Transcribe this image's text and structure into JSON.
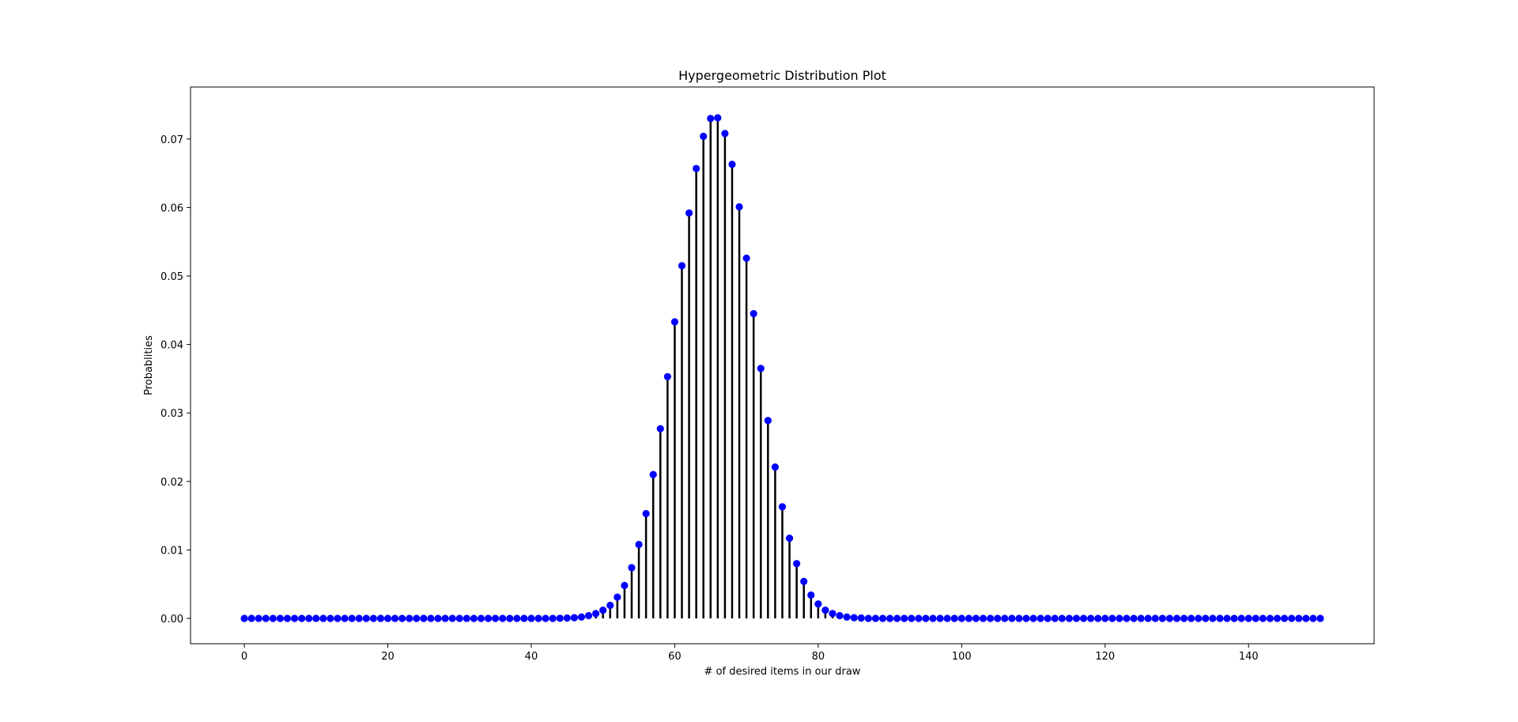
{
  "chart_data": {
    "type": "stem",
    "title": "Hypergeometric Distribution Plot",
    "xlabel": "# of desired items in our draw",
    "ylabel": "Probablities",
    "xlim": [
      -7.5,
      157.5
    ],
    "ylim": [
      -0.0037,
      0.0776
    ],
    "xticks": [
      0,
      20,
      40,
      60,
      80,
      100,
      120,
      140
    ],
    "xtick_labels": [
      "0",
      "20",
      "40",
      "60",
      "80",
      "100",
      "120",
      "140"
    ],
    "yticks": [
      0.0,
      0.01,
      0.02,
      0.03,
      0.04,
      0.05,
      0.06,
      0.07
    ],
    "ytick_labels": [
      "0.00",
      "0.01",
      "0.02",
      "0.03",
      "0.04",
      "0.05",
      "0.06",
      "0.07"
    ],
    "grid": false,
    "x_start": 0,
    "x_end": 150,
    "points": [
      [
        44,
        2e-05
      ],
      [
        45,
        5e-05
      ],
      [
        46,
        0.0001
      ],
      [
        47,
        0.0002
      ],
      [
        48,
        0.0004
      ],
      [
        49,
        0.0007
      ],
      [
        50,
        0.0012
      ],
      [
        51,
        0.0019
      ],
      [
        52,
        0.0031
      ],
      [
        53,
        0.0048
      ],
      [
        54,
        0.0074
      ],
      [
        55,
        0.0108
      ],
      [
        56,
        0.0153
      ],
      [
        57,
        0.021
      ],
      [
        58,
        0.0277
      ],
      [
        59,
        0.0353
      ],
      [
        60,
        0.0433
      ],
      [
        61,
        0.0515
      ],
      [
        62,
        0.0592
      ],
      [
        63,
        0.0657
      ],
      [
        64,
        0.0704
      ],
      [
        65,
        0.073
      ],
      [
        66,
        0.0731
      ],
      [
        67,
        0.0708
      ],
      [
        68,
        0.0663
      ],
      [
        69,
        0.0601
      ],
      [
        70,
        0.0526
      ],
      [
        71,
        0.0445
      ],
      [
        72,
        0.0365
      ],
      [
        73,
        0.0289
      ],
      [
        74,
        0.0221
      ],
      [
        75,
        0.0163
      ],
      [
        76,
        0.0117
      ],
      [
        77,
        0.008
      ],
      [
        78,
        0.0054
      ],
      [
        79,
        0.0034
      ],
      [
        80,
        0.0021
      ],
      [
        81,
        0.0012
      ],
      [
        82,
        0.0007
      ],
      [
        83,
        0.0004
      ],
      [
        84,
        0.0002
      ],
      [
        85,
        0.0001
      ],
      [
        86,
        5e-05
      ]
    ],
    "stem_color": "#000000",
    "marker_color": "#0000ff"
  }
}
